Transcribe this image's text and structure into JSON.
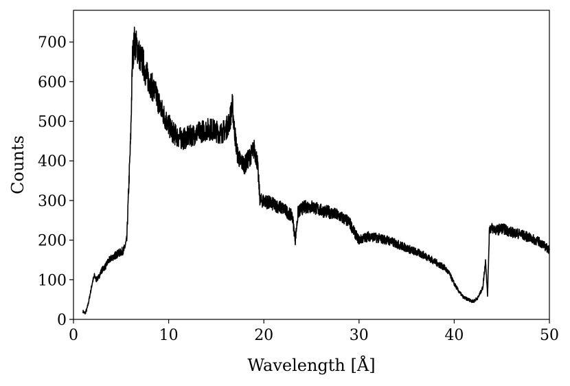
{
  "chart_data": {
    "type": "line",
    "title": "",
    "xlabel": "Wavelength [Å]",
    "ylabel": "Counts",
    "xlim": [
      0,
      50
    ],
    "ylim": [
      0,
      780
    ],
    "xticks": [
      0,
      10,
      20,
      30,
      40,
      50
    ],
    "yticks": [
      0,
      100,
      200,
      300,
      400,
      500,
      600,
      700
    ],
    "grid": false,
    "legend": "none",
    "colors": {
      "line": "#000000",
      "axes": "#000000",
      "background": "#ffffff"
    },
    "series": [
      {
        "x": [
          1.0,
          1.2,
          1.4,
          1.6,
          1.8,
          2.0,
          2.2,
          2.4,
          2.6,
          2.8,
          3.0,
          3.2,
          3.4,
          3.6,
          3.8,
          4.0,
          4.3,
          4.6,
          5.0,
          5.3,
          5.6,
          5.8,
          6.0,
          6.2,
          6.4,
          6.6,
          6.8,
          7.0,
          7.3,
          7.6,
          8.0,
          8.4,
          8.8,
          9.2,
          9.6,
          10.0,
          10.5,
          11.0,
          11.5,
          12.0,
          12.5,
          13.0,
          13.5,
          14.0,
          14.5,
          15.0,
          15.5,
          16.0,
          16.4,
          16.7,
          16.9,
          17.2,
          17.5,
          18.0,
          18.5,
          19.0,
          19.3,
          19.6,
          20.0,
          20.5,
          21.0,
          21.5,
          22.0,
          22.5,
          23.0,
          23.3,
          23.6,
          24.0,
          24.5,
          25.0,
          25.5,
          26.0,
          27.0,
          28.0,
          29.0,
          29.5,
          30.0,
          31.0,
          32.0,
          33.0,
          34.0,
          35.0,
          36.0,
          37.0,
          38.0,
          39.0,
          39.5,
          40.0,
          40.5,
          41.0,
          41.5,
          42.0,
          42.5,
          43.0,
          43.3,
          43.5,
          43.7,
          44.0,
          44.5,
          45.0,
          46.0,
          47.0,
          48.0,
          49.0,
          50.0
        ],
        "y": [
          20,
          15,
          25,
          45,
          70,
          95,
          110,
          100,
          105,
          115,
          125,
          130,
          135,
          145,
          150,
          155,
          160,
          165,
          170,
          175,
          200,
          330,
          450,
          660,
          700,
          690,
          680,
          660,
          650,
          620,
          600,
          580,
          560,
          530,
          510,
          490,
          470,
          460,
          455,
          460,
          465,
          470,
          475,
          480,
          480,
          475,
          470,
          480,
          500,
          540,
          480,
          420,
          400,
          390,
          410,
          430,
          400,
          300,
          300,
          295,
          290,
          285,
          280,
          270,
          260,
          200,
          270,
          280,
          285,
          285,
          280,
          275,
          270,
          260,
          245,
          220,
          200,
          210,
          205,
          200,
          190,
          180,
          170,
          160,
          145,
          130,
          115,
          90,
          70,
          55,
          50,
          45,
          55,
          80,
          150,
          60,
          230,
          230,
          225,
          230,
          220,
          215,
          205,
          195,
          175
        ]
      }
    ]
  }
}
